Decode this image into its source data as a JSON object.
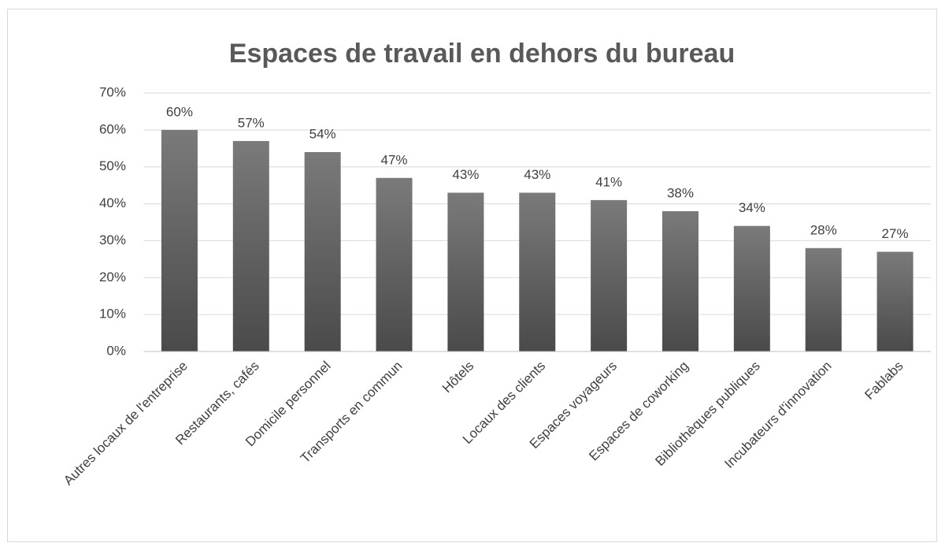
{
  "chart_data": {
    "type": "bar",
    "title": "Espaces de travail en dehors du bureau",
    "categories": [
      "Autres locaux de l'entreprise",
      "Restaurants, cafés",
      "Domicile personnel",
      "Transports en commun",
      "Hôtels",
      "Locaux des clients",
      "Espaces voyageurs",
      "Espaces de coworking",
      "Bibliothèques publiques",
      "Incubateurs d'innovation",
      "Fablabs"
    ],
    "values": [
      60,
      57,
      54,
      47,
      43,
      43,
      41,
      38,
      34,
      28,
      27
    ],
    "value_labels": [
      "60%",
      "57%",
      "54%",
      "47%",
      "43%",
      "43%",
      "41%",
      "38%",
      "34%",
      "28%",
      "27%"
    ],
    "color": "#595959",
    "ylim": [
      0,
      70
    ],
    "yticks": [
      {
        "value": 0,
        "label": "0%"
      },
      {
        "value": 10,
        "label": "10%"
      },
      {
        "value": 20,
        "label": "20%"
      },
      {
        "value": 30,
        "label": "30%"
      },
      {
        "value": 40,
        "label": "40%"
      },
      {
        "value": 50,
        "label": "50%"
      },
      {
        "value": 60,
        "label": "60%"
      },
      {
        "value": 70,
        "label": "70%"
      }
    ],
    "grid": true
  }
}
